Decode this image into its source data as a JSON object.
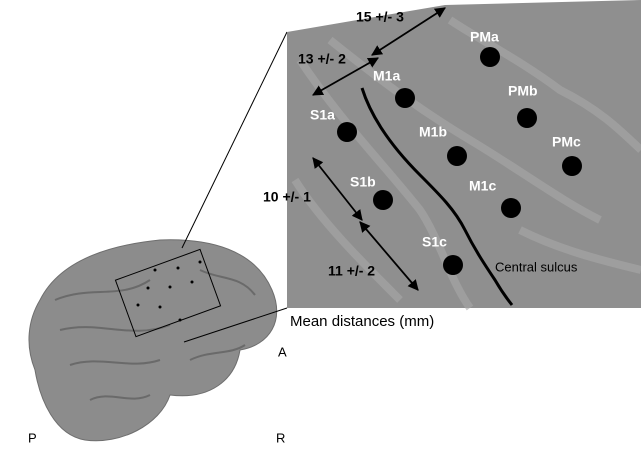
{
  "caption": "Mean distances (mm)",
  "electrodes": [
    "PMa",
    "PMb",
    "PMc",
    "M1a",
    "M1b",
    "M1c",
    "S1a",
    "S1b",
    "S1c"
  ],
  "distances": [
    "15 +/- 3",
    "13 +/- 2",
    "10 +/- 1",
    "11 +/- 2"
  ],
  "sulcus_label": "Central sulcus",
  "orientation": {
    "anterior": "A",
    "posterior": "P",
    "right": "R"
  }
}
